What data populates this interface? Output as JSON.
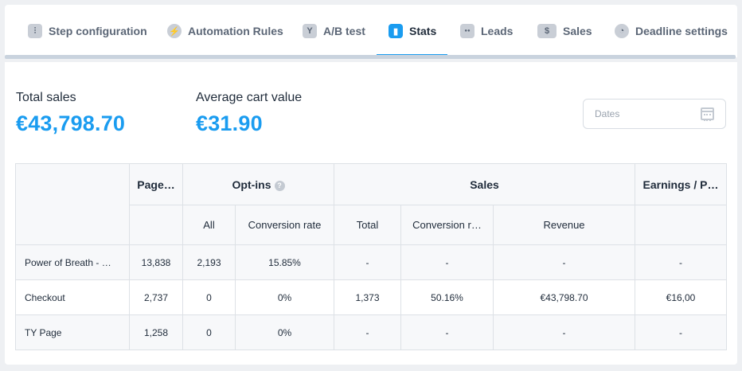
{
  "tabs": [
    {
      "label": "Step configuration",
      "icon": "sliders-icon",
      "glyph": "⫶"
    },
    {
      "label": "Automation Rules",
      "icon": "bolt-icon",
      "glyph": "⚡"
    },
    {
      "label": "A/B test",
      "icon": "split-icon",
      "glyph": "Y"
    },
    {
      "label": "Stats",
      "icon": "chart-icon",
      "glyph": "▮"
    },
    {
      "label": "Leads",
      "icon": "users-icon",
      "glyph": "●●"
    },
    {
      "label": "Sales",
      "icon": "dollar-icon",
      "glyph": "$"
    },
    {
      "label": "Deadline settings",
      "icon": "clock-icon",
      "glyph": "◔"
    }
  ],
  "active_tab": "Stats",
  "accent_color": "#1a9cf0",
  "kpis": {
    "total_sales_label": "Total sales",
    "total_sales_value": "€43,798.70",
    "avg_cart_label": "Average cart value",
    "avg_cart_value": "€31.90"
  },
  "dates": {
    "placeholder": "Dates",
    "icon": "calendar-icon"
  },
  "table": {
    "group_headers": {
      "pages": "Page…",
      "optins": "Opt-ins",
      "optins_help_icon": "help-icon",
      "sales": "Sales",
      "earnings": "Earnings / P…"
    },
    "sub_headers": {
      "all": "All",
      "optin_conversion": "Conversion rate",
      "total": "Total",
      "sales_conversion": "Conversion r…",
      "revenue": "Revenue"
    },
    "rows": [
      {
        "name": "Power of Breath - …",
        "pageviews": "13,838",
        "optins_all": "2,193",
        "optin_rate": "15.85%",
        "sales_total": "-",
        "sales_rate": "-",
        "revenue": "-",
        "earnings": "-"
      },
      {
        "name": "Checkout",
        "pageviews": "2,737",
        "optins_all": "0",
        "optin_rate": "0%",
        "sales_total": "1,373",
        "sales_rate": "50.16%",
        "revenue": "€43,798.70",
        "earnings": "€16,00"
      },
      {
        "name": "TY Page",
        "pageviews": "1,258",
        "optins_all": "0",
        "optin_rate": "0%",
        "sales_total": "-",
        "sales_rate": "-",
        "revenue": "-",
        "earnings": "-"
      }
    ]
  }
}
